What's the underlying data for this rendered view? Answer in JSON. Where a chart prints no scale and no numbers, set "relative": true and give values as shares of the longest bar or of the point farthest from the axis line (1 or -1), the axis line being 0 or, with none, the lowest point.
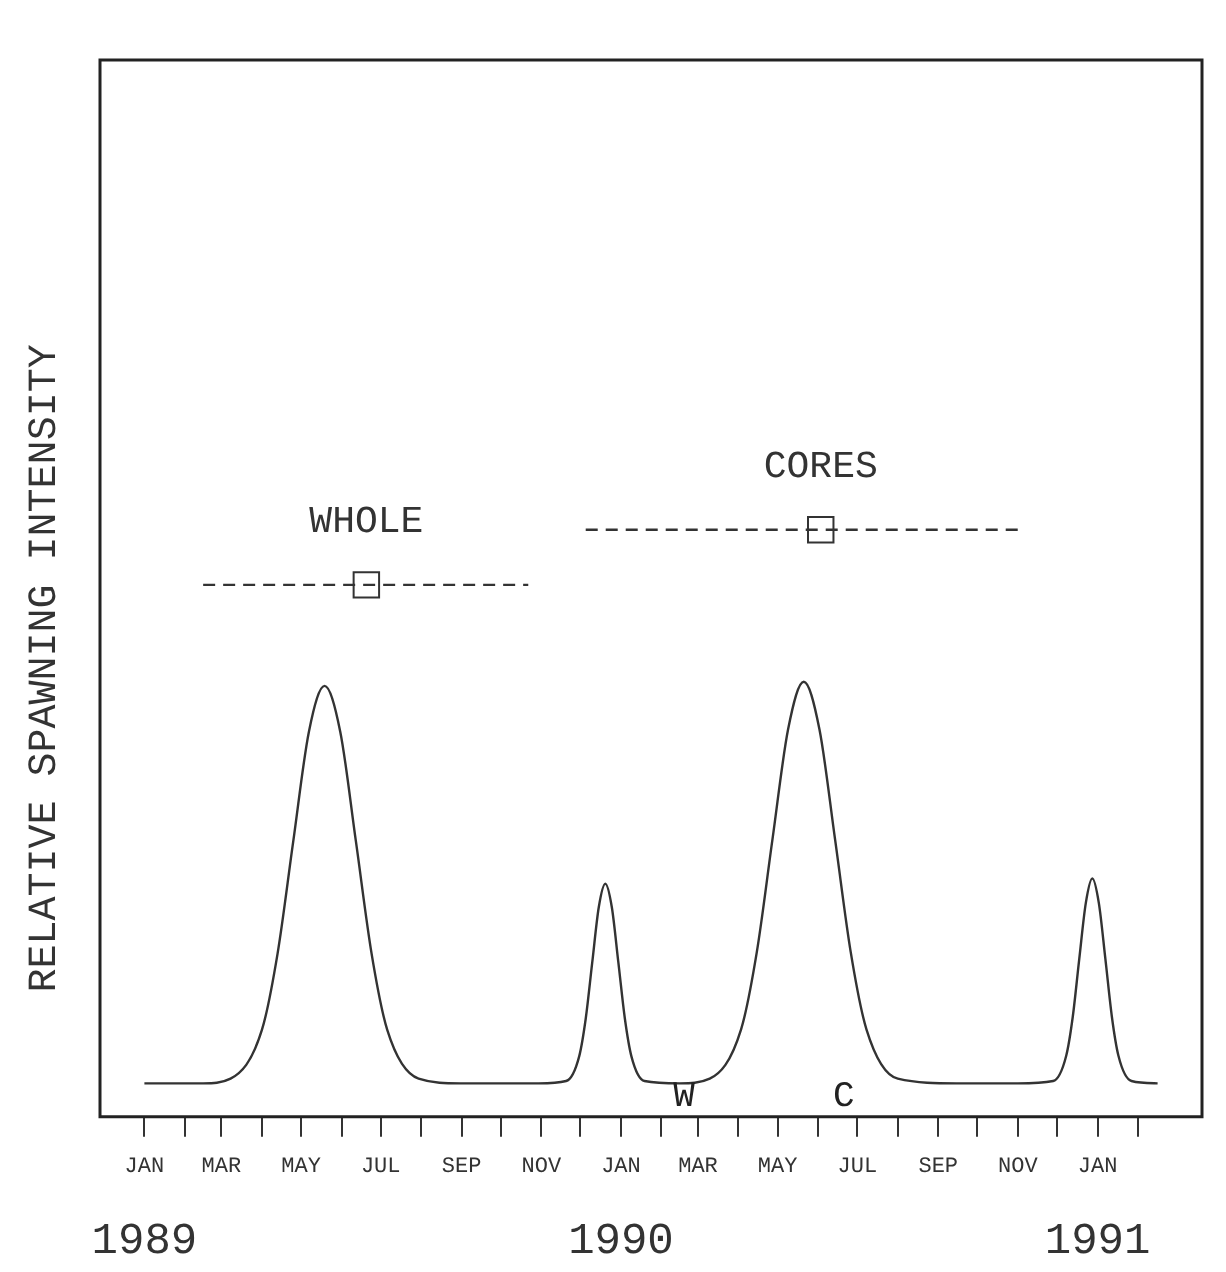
{
  "chart_data": {
    "type": "line",
    "relative": true,
    "ylabel": "RELATIVE SPAWNING INTENSITY",
    "grid": false,
    "legend": false,
    "xlim": [
      "1988-11-28",
      "1991-03-22"
    ],
    "xticks": [
      {
        "value": "1989-01",
        "label": "JAN"
      },
      {
        "value": "1989-02",
        "label": null
      },
      {
        "value": "1989-03",
        "label": "MAR"
      },
      {
        "value": "1989-04",
        "label": null
      },
      {
        "value": "1989-05",
        "label": "MAY"
      },
      {
        "value": "1989-06",
        "label": null
      },
      {
        "value": "1989-07",
        "label": "JUL"
      },
      {
        "value": "1989-08",
        "label": null
      },
      {
        "value": "1989-09",
        "label": "SEP"
      },
      {
        "value": "1989-10",
        "label": null
      },
      {
        "value": "1989-11",
        "label": "NOV"
      },
      {
        "value": "1989-12",
        "label": null
      },
      {
        "value": "1990-01",
        "label": "JAN"
      },
      {
        "value": "1990-02",
        "label": null
      },
      {
        "value": "1990-03",
        "label": "MAR"
      },
      {
        "value": "1990-04",
        "label": null
      },
      {
        "value": "1990-05",
        "label": "MAY"
      },
      {
        "value": "1990-06",
        "label": null
      },
      {
        "value": "1990-07",
        "label": "JUL"
      },
      {
        "value": "1990-08",
        "label": null
      },
      {
        "value": "1990-09",
        "label": "SEP"
      },
      {
        "value": "1990-10",
        "label": null
      },
      {
        "value": "1990-11",
        "label": "NOV"
      },
      {
        "value": "1990-12",
        "label": null
      },
      {
        "value": "1991-01",
        "label": "JAN"
      },
      {
        "value": "1991-02",
        "label": null
      }
    ],
    "x2lim": [
      "1988-11-28",
      "1991-03-22"
    ],
    "x2ticks": [
      {
        "value": "1989-01",
        "label": "1989"
      },
      {
        "value": "1990-01",
        "label": "1990"
      },
      {
        "value": "1991-01",
        "label": "1991"
      }
    ],
    "series": [
      {
        "type": "line",
        "color": "#333333",
        "marker": "none",
        "x": [
          "1989-01-01",
          "1989-02-15",
          "1989-03-08",
          "1989-04-01",
          "1989-04-13",
          "1989-04-25",
          "1989-05-07",
          "1989-05-19",
          "1989-05-31",
          "1989-06-12",
          "1989-06-24",
          "1989-07-06",
          "1989-07-30",
          "1989-08-31",
          "1989-10-30",
          "1989-11-20",
          "1989-11-30",
          "1989-12-05",
          "1989-12-10",
          "1989-12-15",
          "1989-12-20",
          "1989-12-25",
          "1989-12-30",
          "1990-01-04",
          "1990-01-09",
          "1990-01-19",
          "1990-02-15",
          "1990-03-10",
          "1990-04-03",
          "1990-04-15",
          "1990-04-27",
          "1990-05-09",
          "1990-05-21",
          "1990-06-02",
          "1990-06-14",
          "1990-06-26",
          "1990-07-08",
          "1990-08-01",
          "1990-09-15",
          "1990-11-01",
          "1990-11-28",
          "1990-12-08",
          "1990-12-13",
          "1990-12-18",
          "1990-12-23",
          "1990-12-28",
          "1991-01-02",
          "1991-01-07",
          "1991-01-12",
          "1991-01-17",
          "1991-01-27",
          "1991-02-16"
        ],
        "values": [
          0.057,
          0.057,
          0.065,
          0.148,
          0.278,
          0.469,
          0.656,
          0.734,
          0.656,
          0.469,
          0.278,
          0.148,
          0.065,
          0.057,
          0.057,
          0.061,
          0.103,
          0.167,
          0.263,
          0.357,
          0.397,
          0.357,
          0.263,
          0.167,
          0.103,
          0.061,
          0.057,
          0.065,
          0.149,
          0.28,
          0.472,
          0.66,
          0.741,
          0.66,
          0.472,
          0.28,
          0.149,
          0.065,
          0.057,
          0.057,
          0.061,
          0.104,
          0.17,
          0.269,
          0.364,
          0.406,
          0.364,
          0.269,
          0.17,
          0.104,
          0.061,
          0.057
        ]
      },
      {
        "type": "line",
        "color": "#333333",
        "marker": "none",
        "line_style": "dashed",
        "x": [
          "1989-02-15",
          "1989-10-22"
        ],
        "values": [
          0.906,
          0.906
        ]
      },
      {
        "type": "line",
        "color": "#333333",
        "marker": "none",
        "line_style": "dashed",
        "x": [
          "1989-12-05",
          "1990-11-03"
        ],
        "values": [
          1,
          1
        ]
      },
      {
        "type": "scatter",
        "name": "WHOLE",
        "color": "#333333",
        "marker": "square",
        "x": [
          "1989-06-20"
        ],
        "values": [
          0.906
        ]
      },
      {
        "type": "scatter",
        "name": "CORES",
        "color": "#333333",
        "marker": "square",
        "x": [
          "1990-06-03"
        ],
        "values": [
          1
        ]
      }
    ],
    "annotations": [
      "W",
      "C"
    ]
  }
}
